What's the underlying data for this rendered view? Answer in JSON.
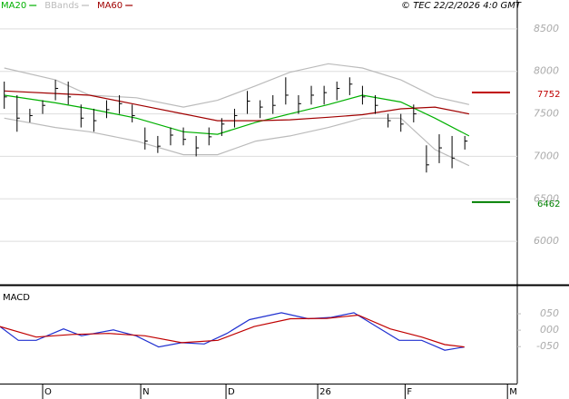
{
  "chart_data": [
    {
      "type": "hlc",
      "copyright": "© TEC 22/2/2026 4:0 GMT",
      "x": [
        1,
        4,
        7,
        10,
        13,
        16,
        19,
        22,
        25,
        28,
        31,
        34,
        37,
        40,
        43,
        46,
        49,
        52,
        55,
        58,
        61,
        64,
        67,
        70,
        73,
        76,
        79,
        82,
        85,
        88,
        91,
        94,
        97,
        100,
        103,
        106,
        109
      ],
      "high": [
        7880,
        7720,
        7560,
        7660,
        7900,
        7880,
        7610,
        7560,
        7660,
        7720,
        7610,
        7340,
        7240,
        7340,
        7340,
        7240,
        7340,
        7450,
        7560,
        7770,
        7660,
        7720,
        7930,
        7720,
        7830,
        7830,
        7880,
        7930,
        7830,
        7720,
        7500,
        7500,
        7610,
        7130,
        7260,
        7240,
        7240
      ],
      "low": [
        7560,
        7290,
        7400,
        7500,
        7660,
        7610,
        7340,
        7290,
        7450,
        7500,
        7400,
        7080,
        7040,
        7130,
        7130,
        7000,
        7130,
        7240,
        7340,
        7500,
        7450,
        7500,
        7610,
        7500,
        7610,
        7610,
        7660,
        7720,
        7610,
        7500,
        7340,
        7290,
        7400,
        6810,
        6920,
        6860,
        7080
      ],
      "close": [
        7700,
        7450,
        7480,
        7600,
        7800,
        7700,
        7450,
        7420,
        7550,
        7620,
        7480,
        7180,
        7120,
        7250,
        7200,
        7100,
        7230,
        7380,
        7480,
        7650,
        7580,
        7600,
        7720,
        7620,
        7720,
        7750,
        7800,
        7850,
        7700,
        7600,
        7420,
        7380,
        7500,
        6900,
        7100,
        6980,
        7180
      ],
      "color": "#000000",
      "series": [
        {
          "name": "MA20",
          "color": "#00b000",
          "x": [
            1,
            13,
            21,
            32,
            43,
            51,
            60,
            68,
            77,
            85,
            94,
            102,
            110
          ],
          "values": [
            7720,
            7630,
            7560,
            7450,
            7290,
            7260,
            7400,
            7500,
            7610,
            7720,
            7640,
            7450,
            7240
          ]
        },
        {
          "name": "BBands",
          "color": "#bbbbbb",
          "x": [
            1,
            13,
            21,
            32,
            43,
            51,
            60,
            68,
            77,
            85,
            94,
            102,
            110
          ],
          "values": [
            8040,
            7900,
            7720,
            7690,
            7580,
            7660,
            7830,
            7990,
            8090,
            8040,
            7900,
            7700,
            7610
          ],
          "lower": [
            7450,
            7340,
            7290,
            7180,
            7020,
            7020,
            7180,
            7240,
            7340,
            7450,
            7450,
            7080,
            6890
          ]
        },
        {
          "name": "MA60",
          "color": "#a00000",
          "x": [
            1,
            13,
            21,
            32,
            43,
            51,
            60,
            68,
            77,
            85,
            94,
            102,
            110
          ],
          "values": [
            7770,
            7740,
            7720,
            7610,
            7500,
            7420,
            7420,
            7430,
            7460,
            7490,
            7560,
            7580,
            7500
          ]
        }
      ],
      "levels": [
        {
          "value": 7752,
          "color": "#c00000"
        },
        {
          "value": 6462,
          "color": "#008000"
        }
      ],
      "xlim": [
        0,
        121.3
      ],
      "xticks": [
        {
          "value": 10,
          "label": "O"
        },
        {
          "value": 33,
          "label": "N"
        },
        {
          "value": 53,
          "label": "D"
        },
        {
          "value": 74.5,
          "label": "26"
        },
        {
          "value": 95,
          "label": "F"
        },
        {
          "value": 119,
          "label": "M"
        }
      ],
      "ylim": [
        5500,
        8840
      ],
      "yticks": [
        6000,
        6500,
        7000,
        7500,
        8000,
        8500
      ],
      "grid": true
    },
    {
      "type": "line",
      "title": "MACD",
      "series": [
        {
          "color": "#2030d0",
          "x": [
            0,
            4.3,
            8.5,
            14.9,
            19.1,
            26.6,
            31.9,
            37.2,
            42.6,
            47.9,
            53.2,
            58.5,
            66,
            72.3,
            77.7,
            83,
            88.3,
            93.6,
            98.9,
            104.3,
            108.9
          ],
          "values": [
            0.11,
            -0.31,
            -0.31,
            0.04,
            -0.17,
            0.01,
            -0.17,
            -0.51,
            -0.38,
            -0.42,
            -0.1,
            0.32,
            0.53,
            0.35,
            0.39,
            0.53,
            0.11,
            -0.31,
            -0.31,
            -0.61,
            -0.51
          ]
        },
        {
          "color": "#c00000",
          "x": [
            0,
            8.5,
            17,
            25.5,
            34,
            42.6,
            51.1,
            59.6,
            68.1,
            76.6,
            84,
            91.5,
            98.9,
            104.3,
            108.9
          ],
          "values": [
            0.11,
            -0.21,
            -0.13,
            -0.1,
            -0.17,
            -0.38,
            -0.31,
            0.11,
            0.35,
            0.36,
            0.46,
            0.04,
            -0.21,
            -0.44,
            -0.51
          ]
        }
      ],
      "xlim": [
        0,
        121.3
      ],
      "ylim": [
        -1.6,
        1.33
      ],
      "yticks": [
        {
          "value": 0.5,
          "label": "050"
        },
        {
          "value": 0,
          "label": "000"
        },
        {
          "value": -0.5,
          "label": "-050"
        }
      ],
      "grid": false
    }
  ]
}
